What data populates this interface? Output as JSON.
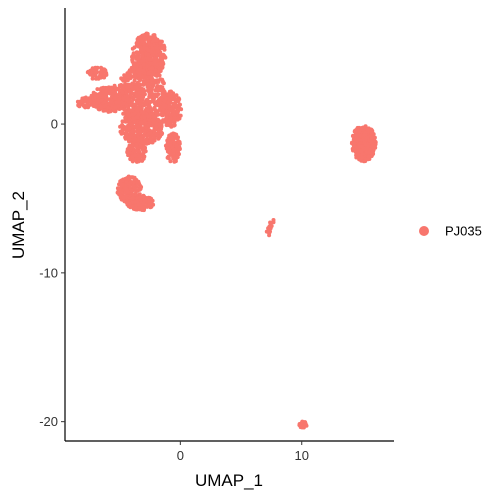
{
  "chart_data": {
    "type": "scatter",
    "title": "",
    "xlabel": "UMAP_1",
    "ylabel": "UMAP_2",
    "xlim": [
      -9.5,
      17.6
    ],
    "ylim": [
      -21.3,
      7.8
    ],
    "x_ticks": [
      0,
      10
    ],
    "x_tick_labels": [
      "0",
      "10"
    ],
    "y_ticks": [
      0,
      -10,
      -20
    ],
    "y_tick_labels": [
      "0",
      "-10",
      "-20"
    ],
    "grid": false,
    "legend_placement": "right",
    "series": [
      {
        "name": "PJ035",
        "color": "#F8766D",
        "clusters": [
          {
            "kind": "blob",
            "cx": -2.6,
            "cy": 4.6,
            "rx": 1.4,
            "ry": 1.5,
            "n": 380
          },
          {
            "kind": "blob",
            "cx": -3.2,
            "cy": 2.0,
            "rx": 2.0,
            "ry": 2.0,
            "n": 520
          },
          {
            "kind": "blob",
            "cx": -5.8,
            "cy": 1.7,
            "rx": 1.6,
            "ry": 0.9,
            "n": 220
          },
          {
            "kind": "blob",
            "cx": -7.6,
            "cy": 1.4,
            "rx": 0.9,
            "ry": 0.4,
            "n": 60
          },
          {
            "kind": "blob",
            "cx": -6.8,
            "cy": 3.4,
            "rx": 0.9,
            "ry": 0.4,
            "n": 50
          },
          {
            "kind": "blob",
            "cx": -3.2,
            "cy": -0.3,
            "rx": 1.8,
            "ry": 1.1,
            "n": 330
          },
          {
            "kind": "blob",
            "cx": -0.8,
            "cy": 1.0,
            "rx": 0.9,
            "ry": 1.2,
            "n": 170
          },
          {
            "kind": "blob",
            "cx": -0.6,
            "cy": -1.6,
            "rx": 0.6,
            "ry": 1.0,
            "n": 120
          },
          {
            "kind": "blob",
            "cx": -3.6,
            "cy": -1.9,
            "rx": 0.8,
            "ry": 0.7,
            "n": 90
          },
          {
            "kind": "blob",
            "cx": -4.2,
            "cy": -4.4,
            "rx": 1.0,
            "ry": 0.9,
            "n": 170
          },
          {
            "kind": "blob",
            "cx": -3.3,
            "cy": -5.3,
            "rx": 1.1,
            "ry": 0.5,
            "n": 140
          },
          {
            "kind": "blob",
            "cx": 15.1,
            "cy": -1.3,
            "rx": 1.0,
            "ry": 1.2,
            "n": 340
          },
          {
            "kind": "line",
            "x1": 7.6,
            "y1": -6.5,
            "x2": 7.2,
            "y2": -7.4,
            "n": 18
          },
          {
            "kind": "blob",
            "cx": 10.1,
            "cy": -20.2,
            "rx": 0.35,
            "ry": 0.22,
            "n": 22
          }
        ]
      }
    ]
  }
}
